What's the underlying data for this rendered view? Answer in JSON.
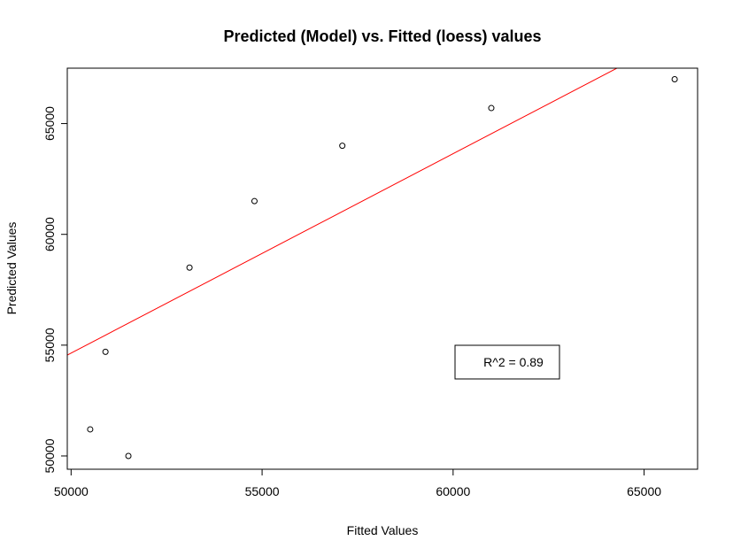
{
  "chart_data": {
    "type": "scatter",
    "title": "Predicted (Model) vs. Fitted (loess) values",
    "xlabel": "Fitted Values",
    "ylabel": "Predicted Values",
    "xlim": [
      49900,
      66400
    ],
    "ylim": [
      49400,
      67500
    ],
    "x_ticks": [
      50000,
      55000,
      60000,
      65000
    ],
    "x_tick_labels": [
      "50000",
      "55000",
      "60000",
      "65000"
    ],
    "y_ticks": [
      50000,
      55000,
      60000,
      65000
    ],
    "y_tick_labels": [
      "50000",
      "55000",
      "60000",
      "65000"
    ],
    "points": [
      {
        "x": 50500,
        "y": 51200
      },
      {
        "x": 50900,
        "y": 54700
      },
      {
        "x": 51500,
        "y": 50000
      },
      {
        "x": 53100,
        "y": 58500
      },
      {
        "x": 54800,
        "y": 61500
      },
      {
        "x": 57100,
        "y": 64000
      },
      {
        "x": 61000,
        "y": 65700
      },
      {
        "x": 65800,
        "y": 67000
      }
    ],
    "fit_line": {
      "color": "#ff0000",
      "intercept": 9640,
      "slope": 0.9
    },
    "legend": {
      "text": "R^2 = 0.89",
      "placement": "bottom-right"
    },
    "grid": false
  }
}
